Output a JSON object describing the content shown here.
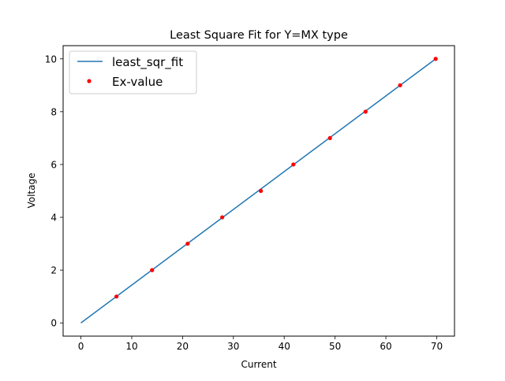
{
  "chart_data": {
    "type": "line",
    "title": "Least Square Fit for Y=MX type",
    "xlabel": "Current",
    "ylabel": "Voltage",
    "xlim": [
      -3.5,
      73.5
    ],
    "ylim": [
      -0.5,
      10.5
    ],
    "xticks": [
      0,
      10,
      20,
      30,
      40,
      50,
      60,
      70
    ],
    "yticks": [
      0,
      2,
      4,
      6,
      8,
      10
    ],
    "grid": false,
    "legend_position": "top-left",
    "series": [
      {
        "name": "least_sqr_fit",
        "kind": "line",
        "color": "#1f77b4",
        "x": [
          0,
          69.8
        ],
        "y": [
          0,
          10
        ]
      },
      {
        "name": "Ex-value",
        "kind": "scatter",
        "color": "#ff0000",
        "x": [
          7,
          14,
          21,
          27.8,
          35.4,
          41.8,
          49,
          56,
          62.8,
          69.8
        ],
        "y": [
          1,
          2,
          3,
          4,
          5,
          6,
          7,
          8,
          9,
          10
        ]
      }
    ]
  }
}
